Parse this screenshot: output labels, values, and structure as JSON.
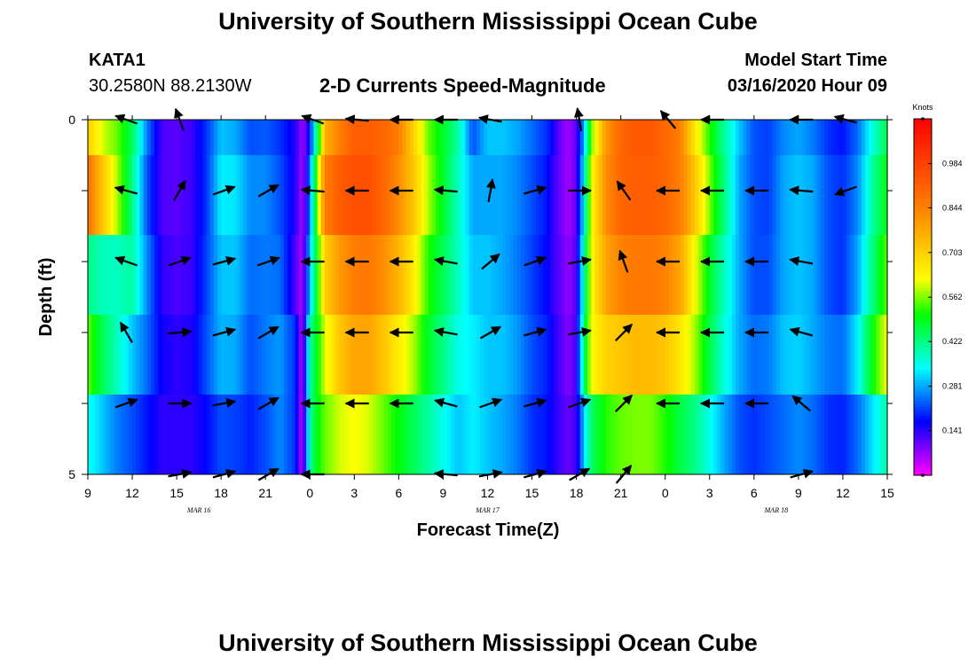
{
  "page": {
    "title_top": "University of Southern Mississippi Ocean Cube",
    "title_bottom": "University of Southern Mississippi Ocean Cube",
    "station": "KATA1",
    "location": "30.2580N 88.2130W",
    "subtitle": "2-D Currents Speed-Magnitude",
    "model_start_label": "Model Start Time",
    "model_start_value": "03/16/2020 Hour 09"
  },
  "colors": {
    "magenta": "#ff00ff",
    "blue": "#0000ff",
    "cyan": "#00ffff",
    "green": "#00ff00",
    "yellow": "#ffff00",
    "orange": "#ff8000",
    "red": "#ff0000",
    "arrow": "#000000"
  },
  "chart_data": {
    "type": "heatmap",
    "title": "2-D Currents Speed-Magnitude",
    "xlabel": "Forecast Time(Z)",
    "ylabel": "Depth (ft)",
    "colorbar_label": "Knots",
    "colorbar_ticks": [
      "0.984",
      "0.844",
      "0.703",
      "0.562",
      "0.422",
      "0.281",
      "0.141"
    ],
    "colorbar_range": [
      0,
      1.125
    ],
    "x_ticks": [
      "9",
      "12",
      "15",
      "18",
      "21",
      "0",
      "3",
      "6",
      "9",
      "12",
      "15",
      "18",
      "21",
      "0",
      "3",
      "6",
      "9",
      "12",
      "15"
    ],
    "x_range_hours": [
      0,
      54
    ],
    "date_labels": [
      {
        "text": "MAR 16",
        "hour": 7.5
      },
      {
        "text": "MAR 17",
        "hour": 27
      },
      {
        "text": "MAR 18",
        "hour": 46.5
      }
    ],
    "y_ticks": [
      "0",
      "5"
    ],
    "y_range_ft": [
      0,
      5
    ],
    "depth_rows": 5,
    "speed_profile": [
      [
        0,
        0.7,
        0.88,
        0.42,
        0.55,
        0.35
      ],
      [
        1,
        0.6,
        0.72,
        0.38,
        0.45,
        0.3
      ],
      [
        2,
        0.55,
        0.58,
        0.38,
        0.38,
        0.25
      ],
      [
        3,
        0.45,
        0.42,
        0.4,
        0.3,
        0.22
      ],
      [
        4,
        0.25,
        0.22,
        0.26,
        0.24,
        0.18
      ],
      [
        5,
        0.12,
        0.12,
        0.14,
        0.16,
        0.14
      ],
      [
        6,
        0.11,
        0.11,
        0.12,
        0.14,
        0.14
      ],
      [
        7,
        0.13,
        0.13,
        0.13,
        0.15,
        0.14
      ],
      [
        8,
        0.2,
        0.2,
        0.21,
        0.22,
        0.17
      ],
      [
        9,
        0.3,
        0.33,
        0.3,
        0.29,
        0.22
      ],
      [
        10,
        0.28,
        0.32,
        0.3,
        0.28,
        0.21
      ],
      [
        11,
        0.22,
        0.26,
        0.24,
        0.22,
        0.19
      ],
      [
        12,
        0.23,
        0.26,
        0.25,
        0.25,
        0.22
      ],
      [
        13,
        0.2,
        0.22,
        0.24,
        0.27,
        0.26
      ],
      [
        14,
        0.15,
        0.15,
        0.12,
        0.2,
        0.2
      ],
      [
        14.5,
        0.06,
        0.05,
        0.05,
        0.04,
        0.03
      ],
      [
        15,
        0.18,
        0.25,
        0.3,
        0.4,
        0.4
      ],
      [
        15.5,
        0.45,
        0.55,
        0.5,
        0.5,
        0.5
      ],
      [
        16,
        0.75,
        0.85,
        0.7,
        0.6,
        0.55
      ],
      [
        17,
        0.85,
        0.92,
        0.8,
        0.72,
        0.6
      ],
      [
        18,
        0.92,
        0.95,
        0.85,
        0.78,
        0.62
      ],
      [
        19,
        0.92,
        0.95,
        0.86,
        0.78,
        0.6
      ],
      [
        20,
        0.9,
        0.9,
        0.82,
        0.72,
        0.55
      ],
      [
        21,
        0.85,
        0.82,
        0.75,
        0.65,
        0.5
      ],
      [
        22,
        0.7,
        0.72,
        0.65,
        0.58,
        0.45
      ],
      [
        23,
        0.55,
        0.58,
        0.52,
        0.48,
        0.4
      ],
      [
        24,
        0.48,
        0.48,
        0.45,
        0.42,
        0.35
      ],
      [
        25,
        0.4,
        0.38,
        0.38,
        0.35,
        0.3
      ],
      [
        26,
        0.22,
        0.28,
        0.3,
        0.33,
        0.33
      ],
      [
        27,
        0.3,
        0.28,
        0.3,
        0.3,
        0.3
      ],
      [
        28,
        0.3,
        0.28,
        0.28,
        0.3,
        0.28
      ],
      [
        29,
        0.28,
        0.26,
        0.25,
        0.27,
        0.25
      ],
      [
        30,
        0.24,
        0.22,
        0.21,
        0.22,
        0.2
      ],
      [
        31,
        0.2,
        0.18,
        0.17,
        0.19,
        0.18
      ],
      [
        31.5,
        0.15,
        0.13,
        0.13,
        0.15,
        0.15
      ],
      [
        32,
        0.09,
        0.09,
        0.1,
        0.11,
        0.12
      ],
      [
        32.5,
        0.06,
        0.06,
        0.07,
        0.08,
        0.1
      ],
      [
        33,
        0.11,
        0.11,
        0.12,
        0.13,
        0.13
      ],
      [
        33.5,
        0.28,
        0.33,
        0.38,
        0.42,
        0.3
      ],
      [
        34,
        0.55,
        0.62,
        0.62,
        0.62,
        0.44
      ],
      [
        35,
        0.8,
        0.82,
        0.78,
        0.7,
        0.52
      ],
      [
        36,
        0.9,
        0.9,
        0.84,
        0.72,
        0.55
      ],
      [
        37,
        0.93,
        0.92,
        0.86,
        0.74,
        0.56
      ],
      [
        38,
        0.93,
        0.92,
        0.86,
        0.74,
        0.56
      ],
      [
        39,
        0.9,
        0.9,
        0.84,
        0.72,
        0.52
      ],
      [
        40,
        0.85,
        0.85,
        0.78,
        0.66,
        0.46
      ],
      [
        41,
        0.66,
        0.72,
        0.62,
        0.58,
        0.42
      ],
      [
        42,
        0.52,
        0.56,
        0.48,
        0.46,
        0.35
      ],
      [
        43,
        0.4,
        0.42,
        0.38,
        0.36,
        0.28
      ],
      [
        44,
        0.3,
        0.28,
        0.28,
        0.28,
        0.22
      ],
      [
        45,
        0.22,
        0.22,
        0.22,
        0.24,
        0.2
      ],
      [
        46,
        0.21,
        0.21,
        0.22,
        0.25,
        0.22
      ],
      [
        47,
        0.26,
        0.28,
        0.28,
        0.3,
        0.24
      ],
      [
        48,
        0.28,
        0.3,
        0.3,
        0.31,
        0.26
      ],
      [
        49,
        0.25,
        0.28,
        0.28,
        0.28,
        0.24
      ],
      [
        50,
        0.2,
        0.22,
        0.22,
        0.25,
        0.2
      ],
      [
        51,
        0.18,
        0.2,
        0.2,
        0.24,
        0.19
      ],
      [
        52,
        0.24,
        0.26,
        0.28,
        0.33,
        0.24
      ],
      [
        53,
        0.36,
        0.4,
        0.42,
        0.5,
        0.32
      ],
      [
        54,
        0.46,
        0.5,
        0.55,
        0.62,
        0.4
      ]
    ],
    "arrow_columns_hours": [
      2.6,
      6.2,
      9.2,
      12.2,
      15.2,
      18.2,
      21.2,
      24.2,
      27.2,
      30.2,
      33.2,
      36.2,
      39.2,
      42.2,
      45.2,
      48.2,
      51.2
    ],
    "arrow_angles_deg": [
      [
        160,
        110,
        null,
        null,
        160,
        175,
        180,
        180,
        170,
        null,
        100,
        null,
        130,
        180,
        null,
        180,
        165
      ],
      [
        165,
        60,
        20,
        30,
        175,
        180,
        180,
        175,
        80,
        15,
        0,
        125,
        180,
        180,
        180,
        175,
        200
      ],
      [
        160,
        20,
        15,
        20,
        180,
        180,
        180,
        170,
        40,
        20,
        10,
        110,
        180,
        180,
        180,
        170,
        null
      ],
      [
        120,
        5,
        15,
        30,
        180,
        180,
        180,
        170,
        30,
        15,
        10,
        45,
        180,
        180,
        180,
        165,
        null
      ],
      [
        20,
        0,
        10,
        30,
        180,
        180,
        180,
        165,
        20,
        15,
        20,
        45,
        180,
        180,
        180,
        140,
        null
      ],
      [
        null,
        10,
        15,
        30,
        180,
        null,
        null,
        175,
        10,
        15,
        30,
        50,
        null,
        null,
        null,
        15,
        null
      ]
    ],
    "arrow_row_depths_ft": [
      0,
      1,
      2,
      3,
      4,
      5
    ]
  }
}
